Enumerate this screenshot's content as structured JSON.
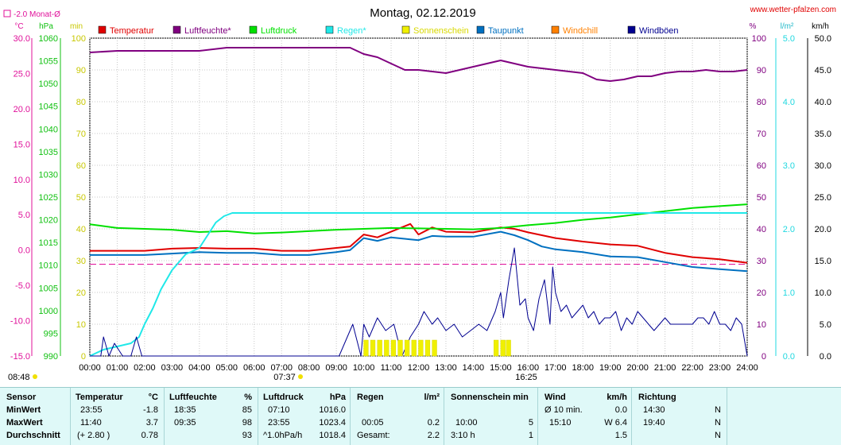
{
  "chart_data": {
    "type": "line",
    "title": "Montag, 02.12.2019",
    "website": "www.wetter-pfalzen.com",
    "month_avg_label": "-2.0 Monat-Ø",
    "grid": true,
    "legend_position": "top",
    "axes": {
      "temp": {
        "unit": "°C",
        "ticks": [
          "30.0",
          "25.0",
          "20.0",
          "15.0",
          "10.0",
          "5.0",
          "0.0",
          "-5.0",
          "-10.0",
          "-15.0"
        ],
        "ylim": [
          -15,
          30
        ],
        "color": "#e0109a"
      },
      "pressure": {
        "unit": "hPa",
        "ticks": [
          "1060",
          "1055",
          "1050",
          "1045",
          "1040",
          "1035",
          "1030",
          "1025",
          "1020",
          "1015",
          "1010",
          "1005",
          "1000",
          "995",
          "990"
        ],
        "ylim": [
          990,
          1060
        ],
        "color": "#10c010"
      },
      "sun": {
        "unit": "min",
        "ticks": [
          "100",
          "90",
          "80",
          "70",
          "60",
          "50",
          "40",
          "30",
          "20",
          "10",
          "0"
        ],
        "ylim": [
          0,
          100
        ],
        "color": "#e0e020"
      },
      "humidity": {
        "unit": "%",
        "ticks": [
          "100",
          "90",
          "80",
          "70",
          "60",
          "50",
          "40",
          "30",
          "20",
          "10",
          "0"
        ],
        "ylim": [
          0,
          100
        ],
        "color": "#800080"
      },
      "rain": {
        "unit": "l/m²",
        "ticks": [
          "5.0",
          "4.0",
          "3.0",
          "2.0",
          "1.0",
          "0.0"
        ],
        "ylim": [
          0,
          5
        ],
        "color": "#20d8e0"
      },
      "wind": {
        "unit": "km/h",
        "ticks": [
          "50.0",
          "45.0",
          "40.0",
          "35.0",
          "30.0",
          "25.0",
          "20.0",
          "15.0",
          "10.0",
          "5.0",
          "0.0"
        ],
        "ylim": [
          0,
          50
        ],
        "color": "#000000"
      }
    },
    "x_ticks": [
      "00:00",
      "01:00",
      "02:00",
      "03:00",
      "04:00",
      "05:00",
      "06:00",
      "07:00",
      "08:00",
      "09:00",
      "10:00",
      "11:00",
      "12:00",
      "13:00",
      "14:00",
      "15:00",
      "16:00",
      "17:00",
      "18:00",
      "19:00",
      "20:00",
      "21:00",
      "22:00",
      "23:00",
      "24:00"
    ],
    "sunrise": "07:37",
    "sunset": "16:25",
    "daylength": "08:48",
    "legend": [
      {
        "name": "Temperatur",
        "color": "#e00000"
      },
      {
        "name": "Luftfeuchte*",
        "color": "#800080"
      },
      {
        "name": "Luftdruck",
        "color": "#00e000"
      },
      {
        "name": "Regen*",
        "color": "#20e8e8"
      },
      {
        "name": "Sonnenschein",
        "color": "#f0f000"
      },
      {
        "name": "Taupunkt",
        "color": "#0070c0"
      },
      {
        "name": "Windchill",
        "color": "#ff8000"
      },
      {
        "name": "Windböen",
        "color": "#000090"
      }
    ],
    "month_avg_temp": -2.0,
    "series": [
      {
        "name": "Temperatur",
        "axis": "temp",
        "color": "#e00000",
        "x": [
          0,
          2,
          3,
          4,
          5,
          6,
          7,
          8,
          9,
          9.5,
          10,
          10.5,
          11,
          11.7,
          12,
          12.5,
          13,
          14,
          15,
          15.5,
          16,
          16.5,
          17,
          18,
          19,
          20,
          21,
          22,
          23,
          24
        ],
        "y": [
          -0.1,
          -0.1,
          0.2,
          0.3,
          0.2,
          0.2,
          -0.1,
          -0.1,
          0.3,
          0.5,
          2.2,
          1.8,
          2.6,
          3.7,
          2.2,
          3.2,
          2.6,
          2.5,
          3.2,
          3.0,
          2.5,
          2.1,
          1.7,
          1.2,
          0.8,
          0.6,
          -0.4,
          -1.0,
          -1.3,
          -1.8
        ]
      },
      {
        "name": "Taupunkt",
        "axis": "temp",
        "color": "#0070c0",
        "x": [
          0,
          2,
          3,
          4,
          5,
          6,
          7,
          8,
          9,
          9.5,
          10,
          10.5,
          11,
          11.7,
          12,
          12.5,
          13,
          14,
          15,
          15.5,
          16,
          16.5,
          17,
          18,
          19,
          20,
          21,
          22,
          23,
          24
        ],
        "y": [
          -0.7,
          -0.7,
          -0.5,
          -0.3,
          -0.4,
          -0.4,
          -0.7,
          -0.7,
          -0.3,
          0.0,
          1.7,
          1.3,
          1.8,
          1.5,
          1.4,
          2.0,
          1.9,
          1.9,
          2.6,
          2.1,
          1.4,
          0.5,
          0.1,
          -0.3,
          -0.9,
          -1.0,
          -1.7,
          -2.4,
          -2.7,
          -3.0
        ]
      },
      {
        "name": "Luftfeuchte*",
        "axis": "humidity",
        "color": "#800080",
        "x": [
          0,
          1,
          2,
          3,
          4,
          5,
          6,
          7,
          8,
          9,
          9.5,
          10,
          10.5,
          11,
          11.5,
          12,
          12.5,
          13,
          13.5,
          14,
          14.5,
          15,
          15.5,
          16,
          17,
          18,
          18.5,
          19,
          19.5,
          20,
          20.5,
          21,
          21.5,
          22,
          22.5,
          23,
          23.5,
          24
        ],
        "y": [
          95.5,
          96,
          96,
          96,
          96,
          97,
          97,
          97,
          97,
          97,
          97,
          95,
          94,
          92,
          90,
          90,
          89.5,
          89,
          90,
          91,
          92,
          93,
          92,
          91,
          90,
          89,
          87,
          86.5,
          87,
          88,
          88,
          89,
          89.5,
          89.5,
          90,
          89.5,
          89.5,
          90
        ]
      },
      {
        "name": "Luftdruck",
        "axis": "pressure",
        "color": "#00e000",
        "x": [
          0,
          1,
          2,
          3,
          4,
          5,
          6,
          7,
          8,
          9,
          10,
          11,
          12,
          13,
          14,
          15,
          16,
          17,
          18,
          19,
          20,
          21,
          22,
          23,
          24
        ],
        "y": [
          1019.0,
          1018.2,
          1018.0,
          1017.8,
          1017.3,
          1017.5,
          1017.0,
          1017.2,
          1017.5,
          1017.8,
          1018.0,
          1018.2,
          1018.1,
          1018.0,
          1017.9,
          1018.2,
          1018.8,
          1019.3,
          1020.0,
          1020.5,
          1021.2,
          1021.9,
          1022.6,
          1023.0,
          1023.4
        ]
      },
      {
        "name": "Regen*",
        "axis": "rain",
        "color": "#20e8e8",
        "x": [
          0,
          0.5,
          1,
          1.5,
          1.8,
          2,
          2.3,
          2.6,
          3,
          3.3,
          3.5,
          4,
          4.3,
          4.6,
          4.9,
          5.2,
          5.5,
          6,
          24
        ],
        "y": [
          0.0,
          0.1,
          0.15,
          0.2,
          0.3,
          0.5,
          0.75,
          1.05,
          1.35,
          1.5,
          1.6,
          1.7,
          1.9,
          2.1,
          2.2,
          2.25,
          2.25,
          2.25,
          2.25
        ]
      },
      {
        "name": "Windböen",
        "axis": "wind",
        "color": "#000090",
        "x": [
          0,
          0.2,
          0.4,
          0.5,
          0.7,
          0.9,
          1.2,
          1.5,
          1.7,
          1.9,
          2,
          3,
          4,
          5,
          6,
          7,
          8,
          9,
          9.1,
          9.3,
          9.6,
          9.9,
          10.0,
          10.2,
          10.5,
          10.8,
          11.1,
          11.4,
          11.7,
          12.0,
          12.2,
          12.5,
          12.7,
          13.0,
          13.3,
          13.6,
          13.9,
          14.2,
          14.5,
          14.8,
          15.0,
          15.1,
          15.3,
          15.5,
          15.7,
          15.9,
          16.0,
          16.2,
          16.4,
          16.6,
          16.8,
          16.9,
          17.0,
          17.2,
          17.4,
          17.6,
          17.8,
          18.0,
          18.2,
          18.4,
          18.6,
          18.8,
          19.0,
          19.2,
          19.4,
          19.6,
          19.8,
          20.0,
          20.2,
          20.4,
          20.6,
          20.8,
          21.0,
          21.2,
          21.4,
          21.6,
          21.8,
          22.0,
          22.2,
          22.4,
          22.6,
          22.8,
          23.0,
          23.2,
          23.4,
          23.6,
          23.8,
          24
        ],
        "y": [
          0,
          0,
          0,
          3,
          0,
          2,
          0,
          0,
          3,
          0,
          0,
          0,
          0,
          0,
          0,
          0,
          0,
          0,
          0,
          2,
          5,
          0,
          5,
          3,
          6,
          4,
          5,
          0,
          3,
          5,
          7,
          5,
          6,
          4,
          5,
          3,
          4,
          5,
          4,
          7,
          10,
          6,
          12,
          17,
          8,
          9,
          6,
          4,
          9,
          12,
          5,
          14,
          10,
          7,
          8,
          6,
          7,
          8,
          6,
          7,
          5,
          6,
          6,
          7,
          4,
          6,
          5,
          7,
          6,
          5,
          4,
          5,
          6,
          5,
          5,
          5,
          5,
          5,
          6,
          6,
          5,
          7,
          5,
          5,
          4,
          6,
          5,
          0
        ]
      },
      {
        "name": "Sonnenschein",
        "axis": "sun",
        "color": "#f0f000",
        "x": [
          10.0,
          10.25,
          10.5,
          10.75,
          11.0,
          11.25,
          11.5,
          11.75,
          12.0,
          12.25,
          12.5,
          14.75,
          15.0,
          15.2
        ],
        "y": [
          5,
          5,
          5,
          5,
          5,
          5,
          5,
          5,
          5,
          5,
          5,
          5,
          5,
          5
        ]
      }
    ]
  },
  "table": {
    "headers": {
      "sensor": "Sensor",
      "temperatur": "Temperatur",
      "temp_unit": "°C",
      "feuchte": "Luftfeuchte",
      "feuchte_unit": "%",
      "druck": "Luftdruck",
      "druck_unit": "hPa",
      "regen": "Regen",
      "regen_unit": "l/m²",
      "sonne": "Sonnenschein min",
      "wind": "Wind",
      "wind_unit": "km/h",
      "richtung": "Richtung"
    },
    "rows": [
      {
        "label": "MinWert",
        "temp_time": "23:55",
        "temp_val": "-1.8",
        "hum_time": "18:35",
        "hum_val": "85",
        "press_time": "07:10",
        "press_val": "1016.0",
        "rain_time": "",
        "rain_val": "",
        "sun_time": "",
        "sun_val": "",
        "wind_time": "Ø 10 min.",
        "wind_val": "0.0",
        "dir_time": "14:30",
        "dir_val": "N"
      },
      {
        "label": "MaxWert",
        "temp_time": "11:40",
        "temp_val": "3.7",
        "hum_time": "09:35",
        "hum_val": "98",
        "press_time": "23:55",
        "press_val": "1023.4",
        "rain_time": "00:05",
        "rain_val": "0.2",
        "sun_time": "10:00",
        "sun_val": "5",
        "wind_time": "15:10",
        "wind_val": "W 6.4",
        "dir_time": "19:40",
        "dir_val": "N"
      },
      {
        "label": "Durchschnitt",
        "temp_time": "(+ 2.80 )",
        "temp_val": "0.78",
        "hum_time": "",
        "hum_val": "93",
        "press_time": "^1.0hPa/h",
        "press_val": "1018.4",
        "rain_time": "Gesamt:",
        "rain_val": "2.2",
        "sun_time": "3:10 h",
        "sun_val": "1",
        "wind_time": "",
        "wind_val": "1.5",
        "dir_time": "",
        "dir_val": "N"
      }
    ]
  }
}
